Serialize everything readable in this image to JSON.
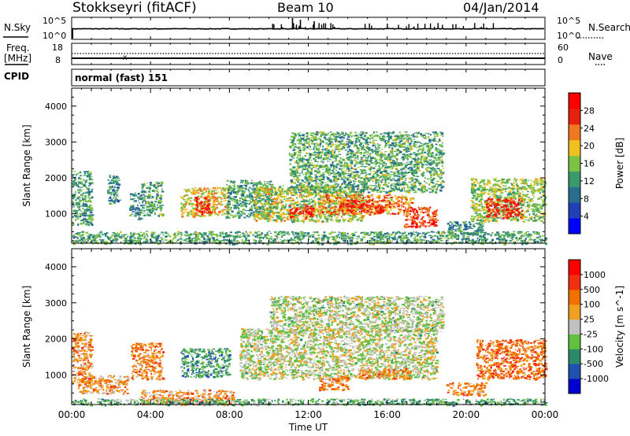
{
  "header": {
    "station": "Stokkseyri (fitACF)",
    "beam": "Beam 10",
    "date": "04/Jan/2014"
  },
  "noise_panel": {
    "left_label": "N.Sky",
    "right_label": "N.Search",
    "left_ticks": [
      "10^5",
      "10^0"
    ],
    "right_ticks": [
      "10^5",
      "10^0"
    ]
  },
  "freq_panel": {
    "left_label_1": "Freq.",
    "left_label_2": "[MHz]",
    "right_label": "Nave",
    "left_ticks": [
      "18",
      "8"
    ],
    "right_ticks": [
      "60",
      "0"
    ]
  },
  "cpid_panel": {
    "label": "CPID",
    "value": "normal (fast) 151"
  },
  "colors": {
    "power_scale": [
      "#0000ff",
      "#2040b8",
      "#2a6e8e",
      "#3a9a6e",
      "#7cc244",
      "#f0c020",
      "#f07820",
      "#e82010",
      "#ff0000"
    ],
    "velocity_scale": [
      "#0000d0",
      "#2050b0",
      "#2a8a6a",
      "#60c040",
      "#c0c0c0",
      "#f0a020",
      "#f07000",
      "#f03010",
      "#ff0000"
    ],
    "velocity_gray": "#c8c8c4"
  },
  "chart_data": [
    {
      "type": "heatmap",
      "title": "",
      "xlabel": "Time UT",
      "ylabel": "Slant Range [km]",
      "x_range_hours": [
        0,
        24
      ],
      "ylim": [
        180,
        4500
      ],
      "x_ticks": [
        "00:00",
        "04:00",
        "08:00",
        "12:00",
        "16:00",
        "20:00",
        "00:00"
      ],
      "y_ticks": [
        1000,
        2000,
        3000,
        4000
      ],
      "colorbar": {
        "label": "Power [dB]",
        "range": [
          0,
          32
        ],
        "ticks": [
          4,
          8,
          12,
          16,
          20,
          24,
          28
        ]
      },
      "regions": [
        {
          "t0": 0.0,
          "t1": 1.0,
          "r0": 700,
          "r1": 2200,
          "level": 0.38
        },
        {
          "t0": 1.8,
          "t1": 2.4,
          "r0": 1300,
          "r1": 2100,
          "level": 0.3
        },
        {
          "t0": 2.9,
          "t1": 3.5,
          "r0": 850,
          "r1": 1600,
          "level": 0.3
        },
        {
          "t0": 3.5,
          "t1": 4.6,
          "r0": 950,
          "r1": 1900,
          "level": 0.4
        },
        {
          "t0": 5.5,
          "t1": 7.9,
          "r0": 950,
          "r1": 1750,
          "level": 0.62
        },
        {
          "t0": 6.2,
          "t1": 7.0,
          "r0": 1000,
          "r1": 1500,
          "level": 0.92
        },
        {
          "t0": 7.8,
          "t1": 10.2,
          "r0": 900,
          "r1": 1950,
          "level": 0.38
        },
        {
          "t0": 9.2,
          "t1": 14.8,
          "r0": 800,
          "r1": 1800,
          "level": 0.55
        },
        {
          "t0": 11.0,
          "t1": 12.2,
          "r0": 900,
          "r1": 1250,
          "level": 0.9
        },
        {
          "t0": 12.5,
          "t1": 17.3,
          "r0": 1000,
          "r1": 1550,
          "level": 0.72
        },
        {
          "t0": 13.5,
          "t1": 15.8,
          "r0": 1050,
          "r1": 1400,
          "level": 0.88
        },
        {
          "t0": 16.8,
          "t1": 18.5,
          "r0": 650,
          "r1": 1200,
          "level": 0.85
        },
        {
          "t0": 11.0,
          "t1": 18.8,
          "r0": 1600,
          "r1": 3300,
          "level": 0.42
        },
        {
          "t0": 19.0,
          "t1": 20.8,
          "r0": 450,
          "r1": 800,
          "level": 0.34
        },
        {
          "t0": 20.2,
          "t1": 24.0,
          "r0": 800,
          "r1": 2000,
          "level": 0.5
        },
        {
          "t0": 21.0,
          "t1": 22.8,
          "r0": 900,
          "r1": 1450,
          "level": 0.92
        },
        {
          "t0": 0.0,
          "t1": 24.0,
          "r0": 180,
          "r1": 520,
          "level": 0.4
        }
      ]
    },
    {
      "type": "heatmap",
      "title": "",
      "xlabel": "Time UT",
      "ylabel": "Slant Range [km]",
      "x_range_hours": [
        0,
        24
      ],
      "ylim": [
        180,
        4500
      ],
      "x_ticks": [
        "00:00",
        "04:00",
        "08:00",
        "12:00",
        "16:00",
        "20:00",
        "00:00"
      ],
      "y_ticks": [
        1000,
        2000,
        3000,
        4000
      ],
      "colorbar": {
        "label": "Velocity [m s^-1]",
        "ticks": [
          "1000",
          "500",
          "100",
          "25",
          "-25",
          "-100",
          "-500",
          "-1000"
        ]
      },
      "regions": [
        {
          "t0": 0.0,
          "t1": 1.0,
          "r0": 800,
          "r1": 2200,
          "level": 0.7
        },
        {
          "t0": 0.3,
          "t1": 2.8,
          "r0": 500,
          "r1": 1000,
          "level": 0.68
        },
        {
          "t0": 3.0,
          "t1": 4.6,
          "r0": 900,
          "r1": 1900,
          "level": 0.72
        },
        {
          "t0": 3.5,
          "t1": 8.2,
          "r0": 180,
          "r1": 600,
          "level": 0.68
        },
        {
          "t0": 5.5,
          "t1": 8.0,
          "r0": 950,
          "r1": 1750,
          "level": 0.3
        },
        {
          "t0": 8.5,
          "t1": 18.5,
          "r0": 900,
          "r1": 2300,
          "level": 0.48
        },
        {
          "t0": 10.0,
          "t1": 18.8,
          "r0": 2200,
          "r1": 3200,
          "level": 0.47
        },
        {
          "t0": 12.5,
          "t1": 14.0,
          "r0": 600,
          "r1": 1000,
          "level": 0.7
        },
        {
          "t0": 14.5,
          "t1": 17.2,
          "r0": 900,
          "r1": 1200,
          "level": 0.72
        },
        {
          "t0": 19.0,
          "t1": 21.0,
          "r0": 450,
          "r1": 800,
          "level": 0.72
        },
        {
          "t0": 20.5,
          "t1": 24.0,
          "r0": 900,
          "r1": 2000,
          "level": 0.75
        },
        {
          "t0": 0.0,
          "t1": 24.0,
          "r0": 180,
          "r1": 350,
          "level": 0.35
        }
      ]
    }
  ]
}
